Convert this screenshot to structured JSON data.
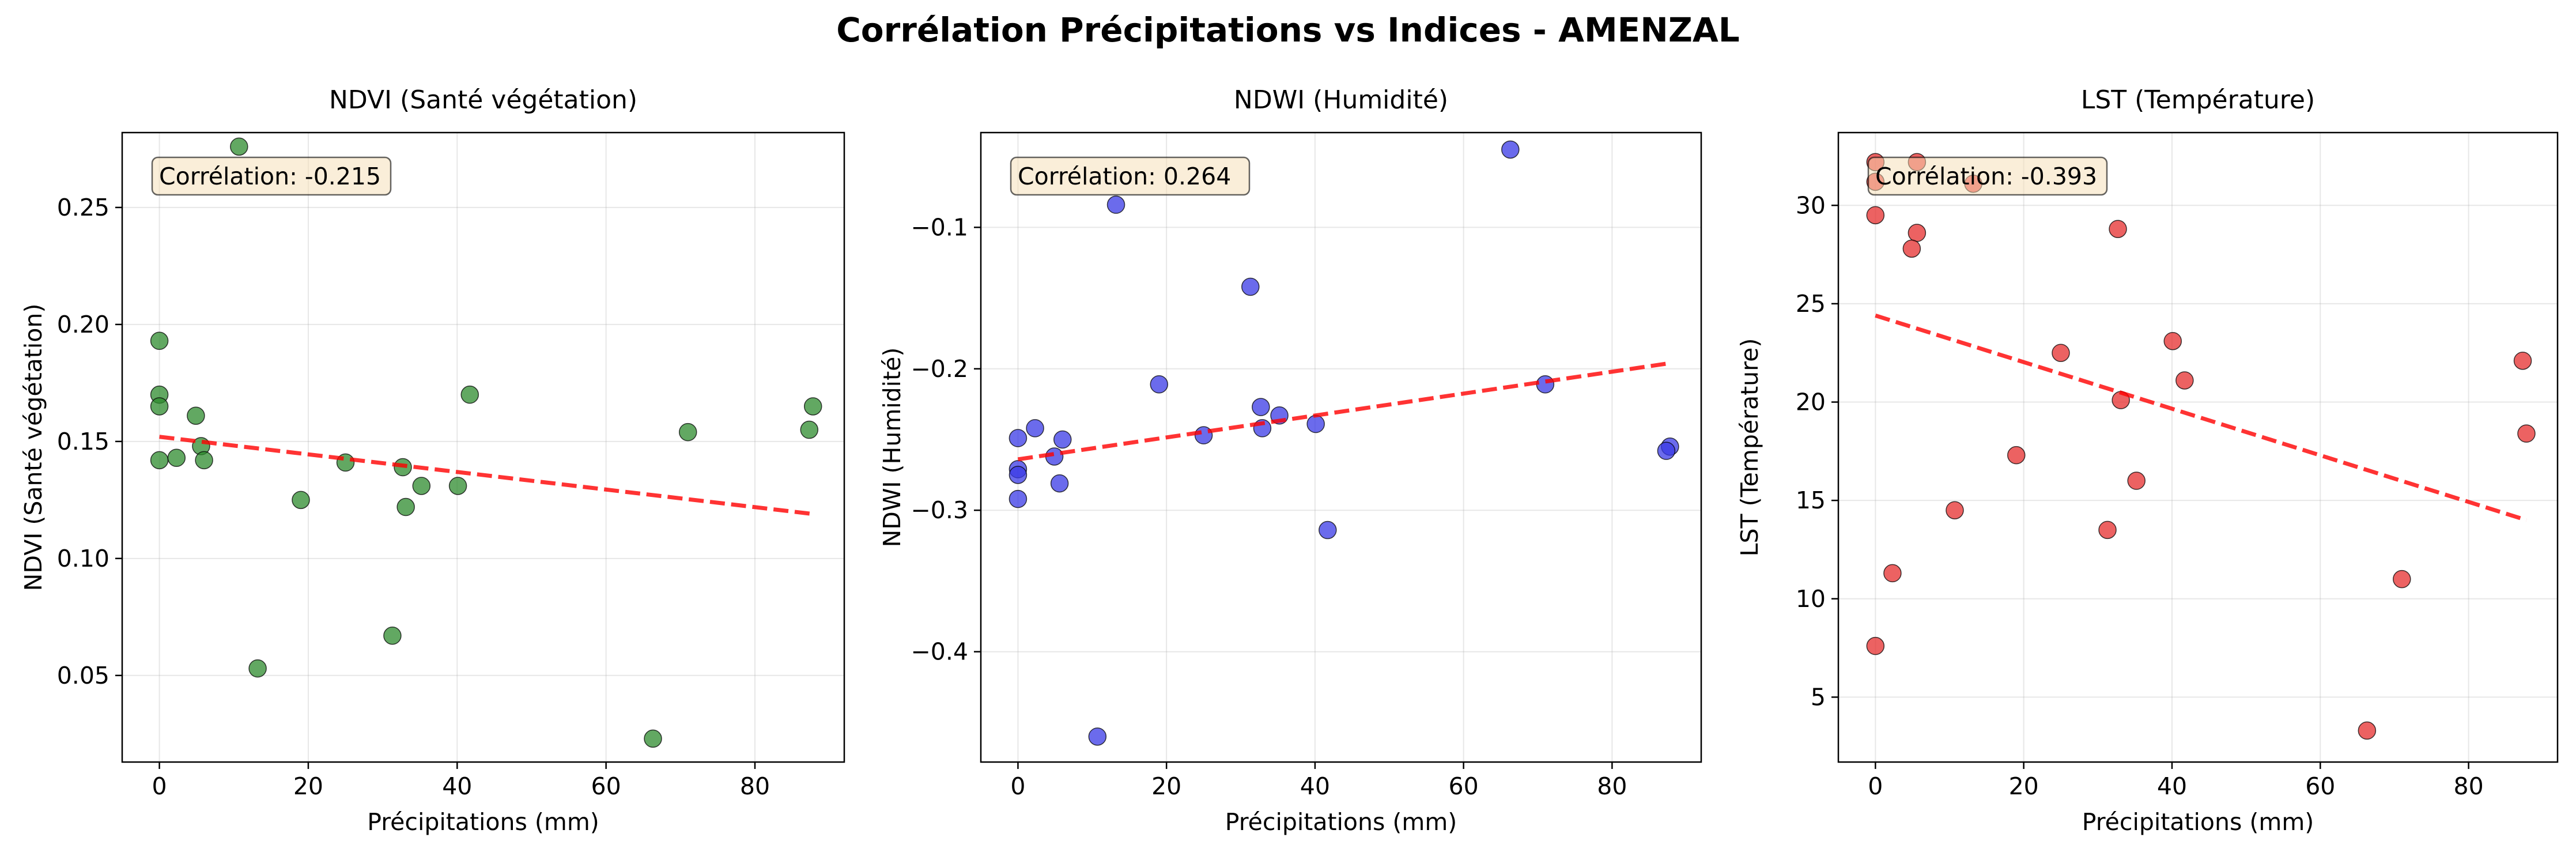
{
  "figure": {
    "title": "Corrélation Précipitations vs Indices - AMENZAL"
  },
  "chart_data": [
    {
      "type": "scatter",
      "title": "NDVI (Santé végétation)",
      "xlabel": "Précipitations (mm)",
      "ylabel": "NDVI (Santé végétation)",
      "xlim": [
        -5,
        92
      ],
      "ylim": [
        0.013,
        0.282
      ],
      "xticks": [
        0,
        20,
        40,
        60,
        80
      ],
      "yticks": [
        0.05,
        0.1,
        0.15,
        0.2,
        0.25
      ],
      "ytick_labels": [
        "0.05",
        "0.10",
        "0.15",
        "0.20",
        "0.25"
      ],
      "grid": true,
      "color": "#2e8b2e",
      "correlation_label": "Corrélation: -0.215",
      "points": [
        {
          "x": 10.7,
          "y": 0.276
        },
        {
          "x": 0,
          "y": 0.193
        },
        {
          "x": 0,
          "y": 0.17
        },
        {
          "x": 0,
          "y": 0.165
        },
        {
          "x": 0,
          "y": 0.142
        },
        {
          "x": 2.3,
          "y": 0.143
        },
        {
          "x": 4.9,
          "y": 0.161
        },
        {
          "x": 5.6,
          "y": 0.148
        },
        {
          "x": 6.0,
          "y": 0.142
        },
        {
          "x": 13.2,
          "y": 0.053
        },
        {
          "x": 19.0,
          "y": 0.125
        },
        {
          "x": 25.0,
          "y": 0.141
        },
        {
          "x": 31.3,
          "y": 0.067
        },
        {
          "x": 32.7,
          "y": 0.139
        },
        {
          "x": 33.1,
          "y": 0.122
        },
        {
          "x": 35.2,
          "y": 0.131
        },
        {
          "x": 40.1,
          "y": 0.131
        },
        {
          "x": 41.7,
          "y": 0.17
        },
        {
          "x": 66.3,
          "y": 0.023
        },
        {
          "x": 71.0,
          "y": 0.154
        },
        {
          "x": 87.3,
          "y": 0.155
        },
        {
          "x": 87.8,
          "y": 0.165
        }
      ],
      "trend": {
        "x": [
          0,
          87.8
        ],
        "y": [
          0.152,
          0.119
        ]
      }
    },
    {
      "type": "scatter",
      "title": "NDWI (Humidité)",
      "xlabel": "Précipitations (mm)",
      "ylabel": "NDWI (Humidité)",
      "xlim": [
        -5,
        92
      ],
      "ylim": [
        -0.478,
        -0.033
      ],
      "xticks": [
        0,
        20,
        40,
        60,
        80
      ],
      "yticks": [
        -0.4,
        -0.3,
        -0.2,
        -0.1
      ],
      "ytick_labels": [
        "−0.4",
        "−0.3",
        "−0.2",
        "−0.1"
      ],
      "grid": true,
      "color": "#3a3ae6",
      "correlation_label": "Corrélation: 0.264",
      "points": [
        {
          "x": 66.3,
          "y": -0.045
        },
        {
          "x": 13.2,
          "y": -0.084
        },
        {
          "x": 31.3,
          "y": -0.142
        },
        {
          "x": 19.0,
          "y": -0.211
        },
        {
          "x": 71.0,
          "y": -0.211
        },
        {
          "x": 32.7,
          "y": -0.227
        },
        {
          "x": 35.2,
          "y": -0.233
        },
        {
          "x": 2.3,
          "y": -0.242
        },
        {
          "x": 32.9,
          "y": -0.242
        },
        {
          "x": 40.1,
          "y": -0.239
        },
        {
          "x": 25.0,
          "y": -0.247
        },
        {
          "x": 0,
          "y": -0.249
        },
        {
          "x": 6.0,
          "y": -0.25
        },
        {
          "x": 87.8,
          "y": -0.255
        },
        {
          "x": 87.3,
          "y": -0.258
        },
        {
          "x": 4.9,
          "y": -0.262
        },
        {
          "x": 0,
          "y": -0.271
        },
        {
          "x": 0,
          "y": -0.275
        },
        {
          "x": 5.6,
          "y": -0.281
        },
        {
          "x": 0,
          "y": -0.292
        },
        {
          "x": 41.7,
          "y": -0.314
        },
        {
          "x": 10.7,
          "y": -0.46
        }
      ],
      "trend": {
        "x": [
          0,
          87.8
        ],
        "y": [
          -0.264,
          -0.196
        ]
      }
    },
    {
      "type": "scatter",
      "title": "LST (Température)",
      "xlabel": "Précipitations (mm)",
      "ylabel": "LST (Température)",
      "xlim": [
        -5,
        92
      ],
      "ylim": [
        1.7,
        33.7
      ],
      "xticks": [
        0,
        20,
        40,
        60,
        80
      ],
      "yticks": [
        5,
        10,
        15,
        20,
        25,
        30
      ],
      "ytick_labels": [
        "5",
        "10",
        "15",
        "20",
        "25",
        "30"
      ],
      "grid": true,
      "color": "#e62e2e",
      "correlation_label": "Corrélation: -0.393",
      "points": [
        {
          "x": 0,
          "y": 32.2
        },
        {
          "x": 0,
          "y": 31.2
        },
        {
          "x": 0,
          "y": 29.5
        },
        {
          "x": 5.6,
          "y": 32.2
        },
        {
          "x": 13.2,
          "y": 31.1
        },
        {
          "x": 5.6,
          "y": 28.6
        },
        {
          "x": 4.9,
          "y": 27.8
        },
        {
          "x": 32.7,
          "y": 28.8
        },
        {
          "x": 40.1,
          "y": 23.1
        },
        {
          "x": 25.0,
          "y": 22.5
        },
        {
          "x": 87.3,
          "y": 22.1
        },
        {
          "x": 41.7,
          "y": 21.1
        },
        {
          "x": 33.1,
          "y": 20.1
        },
        {
          "x": 87.8,
          "y": 18.4
        },
        {
          "x": 19.0,
          "y": 17.3
        },
        {
          "x": 35.2,
          "y": 16.0
        },
        {
          "x": 10.7,
          "y": 14.5
        },
        {
          "x": 31.3,
          "y": 13.5
        },
        {
          "x": 2.3,
          "y": 11.3
        },
        {
          "x": 71.0,
          "y": 11.0
        },
        {
          "x": 0,
          "y": 7.6
        },
        {
          "x": 66.3,
          "y": 3.3
        }
      ],
      "trend": {
        "x": [
          0,
          87.8
        ],
        "y": [
          24.4,
          14.0
        ]
      }
    }
  ]
}
